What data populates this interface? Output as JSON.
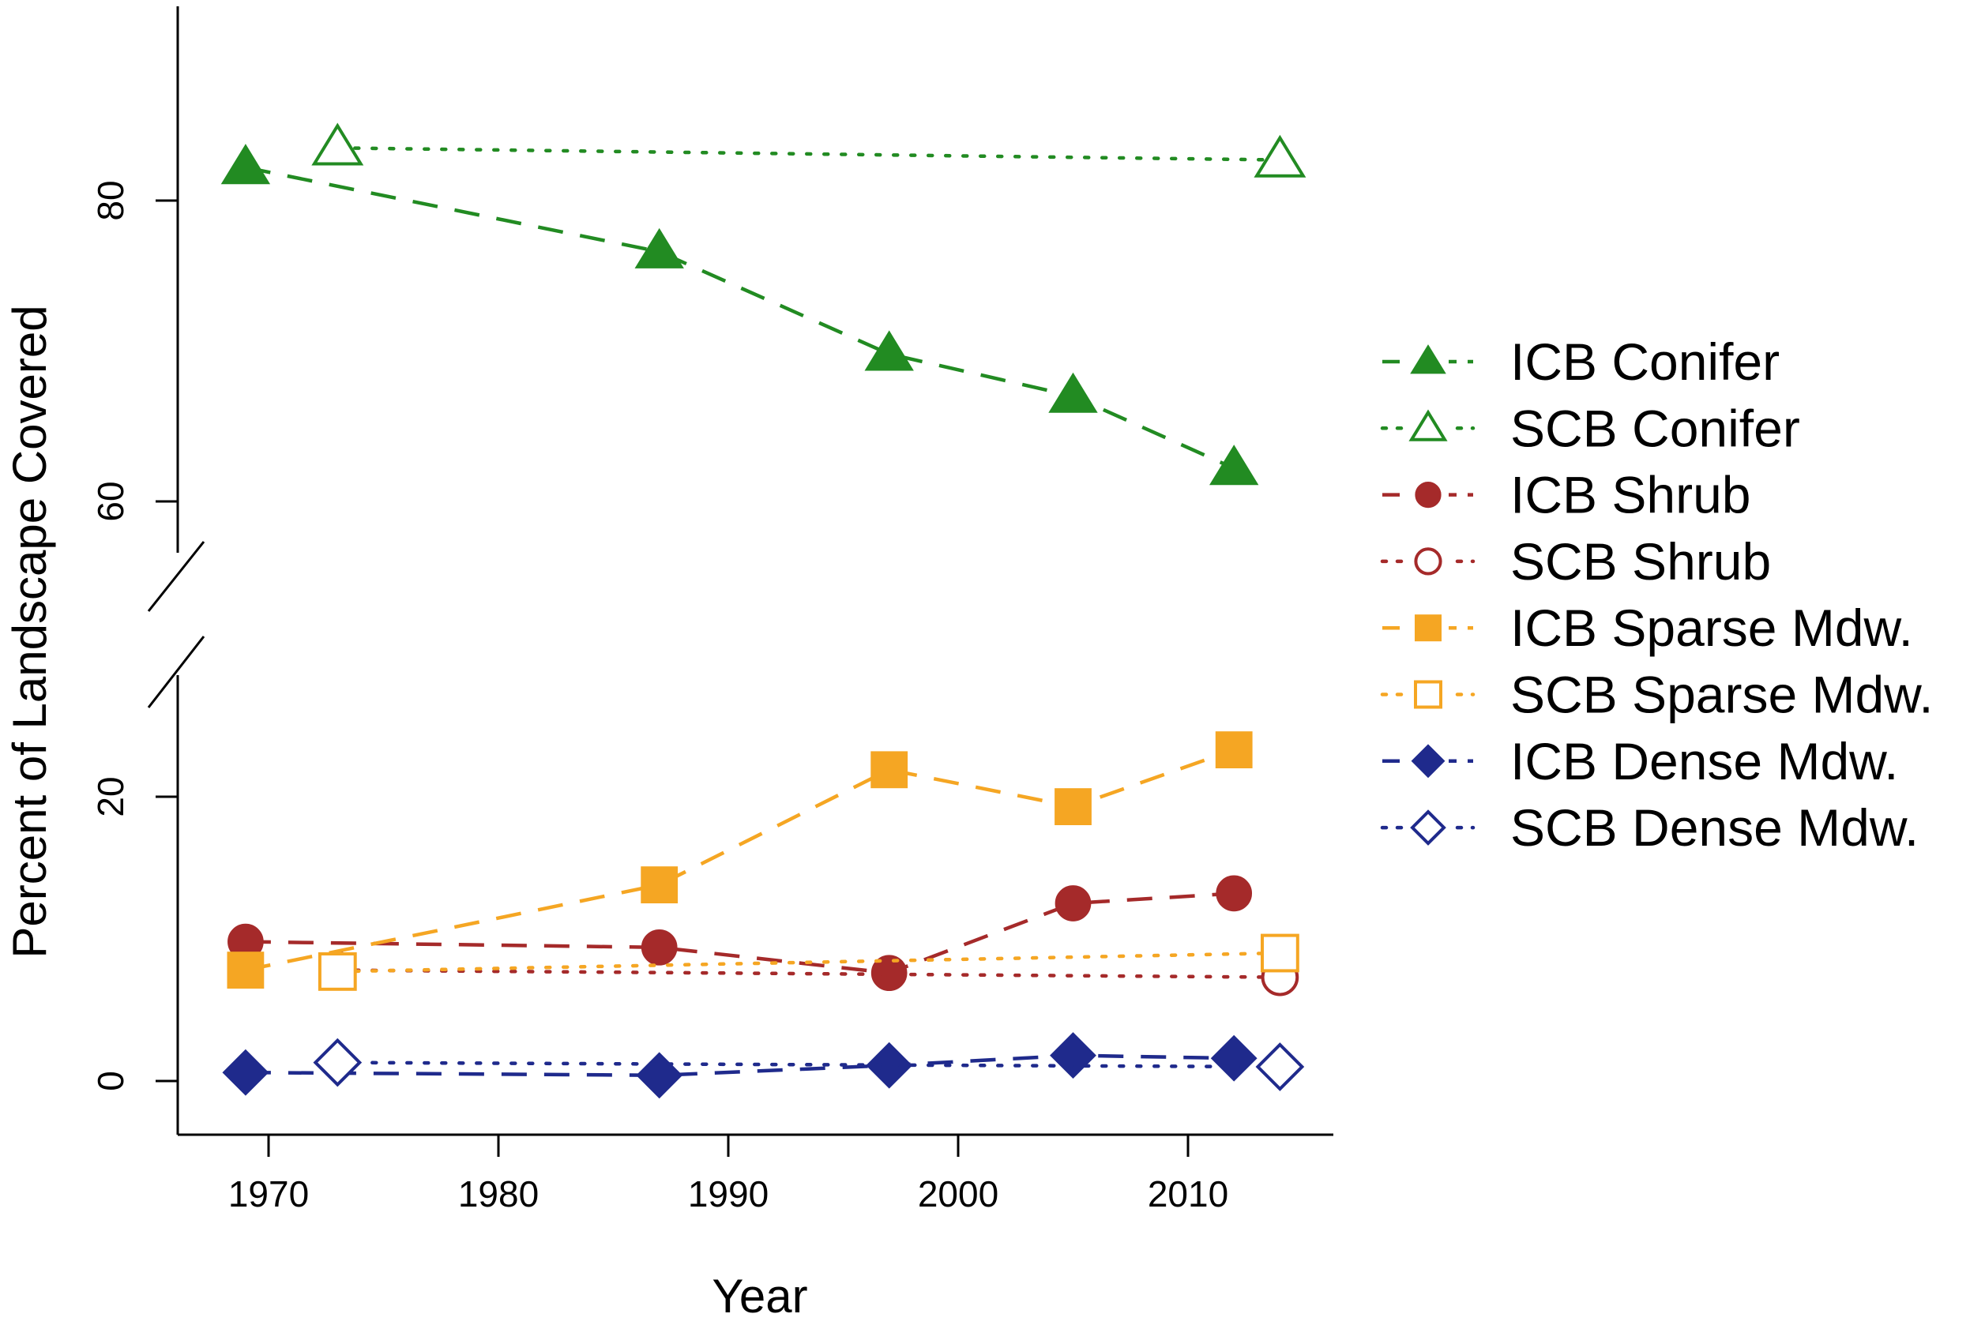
{
  "chart_data": {
    "type": "line",
    "xlabel": "Year",
    "ylabel": "Percent of Landscape Covered",
    "xlim": [
      1965,
      2016
    ],
    "x_ticks": [
      1970,
      1980,
      1990,
      2000,
      2010
    ],
    "y_ticks": [
      0,
      20,
      60,
      80
    ],
    "y_axis_break": [
      30,
      56
    ],
    "grid": false,
    "legend_position": "right",
    "series": [
      {
        "name": "ICB Conifer",
        "color": "#228B22",
        "line": "dashed",
        "marker": "triangle",
        "filled": true,
        "x": [
          1969,
          1987,
          1997,
          2005,
          2012
        ],
        "y": [
          82.2,
          76.6,
          69.8,
          67.0,
          62.2
        ]
      },
      {
        "name": "SCB Conifer",
        "color": "#228B22",
        "line": "dotted",
        "marker": "triangle",
        "filled": false,
        "x": [
          1973,
          2014
        ],
        "y": [
          83.5,
          82.7
        ]
      },
      {
        "name": "ICB Shrub",
        "color": "#A52A2A",
        "line": "dashed",
        "marker": "circle",
        "filled": true,
        "x": [
          1969,
          1987,
          1997,
          2005,
          2012
        ],
        "y": [
          9.8,
          9.4,
          7.6,
          12.5,
          13.2
        ]
      },
      {
        "name": "SCB Shrub",
        "color": "#A52A2A",
        "line": "dotted",
        "marker": "circle",
        "filled": false,
        "x": [
          1973,
          2014
        ],
        "y": [
          7.8,
          7.3
        ]
      },
      {
        "name": "ICB Sparse Mdw.",
        "color": "#F5A623",
        "line": "dashed",
        "marker": "square",
        "filled": true,
        "x": [
          1969,
          1987,
          1997,
          2005,
          2012
        ],
        "y": [
          7.8,
          13.8,
          21.9,
          19.3,
          23.3
        ]
      },
      {
        "name": "SCB Sparse Mdw.",
        "color": "#F5A623",
        "line": "dotted",
        "marker": "square",
        "filled": false,
        "x": [
          1973,
          2014
        ],
        "y": [
          7.7,
          9.0
        ]
      },
      {
        "name": "ICB Dense Mdw.",
        "color": "#1F2A8C",
        "line": "dashed",
        "marker": "diamond",
        "filled": true,
        "x": [
          1969,
          1987,
          1997,
          2005,
          2012
        ],
        "y": [
          0.6,
          0.4,
          1.1,
          1.8,
          1.6
        ]
      },
      {
        "name": "SCB Dense Mdw.",
        "color": "#1F2A8C",
        "line": "dotted",
        "marker": "diamond",
        "filled": false,
        "x": [
          1973,
          2014
        ],
        "y": [
          1.3,
          1.0
        ]
      }
    ]
  }
}
